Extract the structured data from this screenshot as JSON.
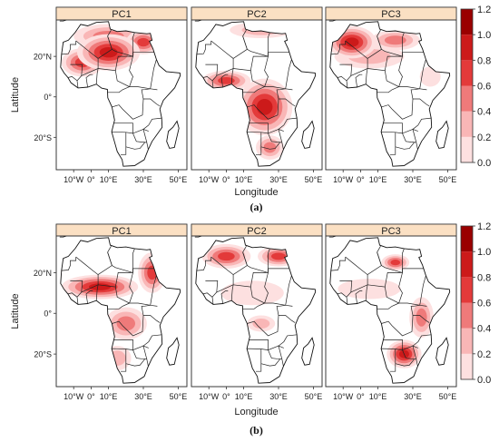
{
  "figure": {
    "panel_a": {
      "caption": "(a)",
      "titles": [
        "PC1",
        "PC2",
        "PC3"
      ],
      "xlabel": "Longitude",
      "ylabel": "Latitude",
      "xticks": [
        "10°W",
        "0°",
        "10°E",
        "30°E",
        "50°E"
      ],
      "yticks": [
        "20°N",
        "0°",
        "20°S"
      ],
      "colorbar": {
        "ticks": [
          "1.2",
          "1.0",
          "0.8",
          "0.6",
          "0.4",
          "0.2",
          "0.0"
        ]
      }
    },
    "panel_b": {
      "caption": "(b)",
      "titles": [
        "PC1",
        "PC2",
        "PC3"
      ],
      "xlabel": "Longitude",
      "ylabel": "Latitude",
      "xticks": [
        "10°W",
        "0°",
        "10°E",
        "30°E",
        "50°E"
      ],
      "yticks": [
        "20°N",
        "0°",
        "20°S"
      ],
      "colorbar": {
        "ticks": [
          "1.2",
          "1.0",
          "0.8",
          "0.6",
          "0.4",
          "0.2",
          "0.0"
        ]
      }
    }
  },
  "colors": {
    "strip": "#fbe0c3",
    "scale": [
      "#ffffff",
      "#fde0e0",
      "#f9b6b6",
      "#ef7a7a",
      "#e33a3a",
      "#cc1a1a",
      "#9a0000"
    ]
  },
  "map_levels": {
    "a": [
      [
        {
          "lon": 10,
          "lat": 22,
          "level": 5,
          "rx": 18,
          "ry": 9
        },
        {
          "lon": -5,
          "lat": 17,
          "level": 4,
          "rx": 12,
          "ry": 7
        },
        {
          "lon": 30,
          "lat": 27,
          "level": 4,
          "rx": 10,
          "ry": 6
        },
        {
          "lon": 10,
          "lat": 30,
          "level": 3,
          "rx": 20,
          "ry": 6
        }
      ],
      [
        {
          "lon": 22,
          "lat": -5,
          "level": 5,
          "rx": 16,
          "ry": 14
        },
        {
          "lon": 0,
          "lat": 8,
          "level": 4,
          "rx": 14,
          "ry": 5
        },
        {
          "lon": 25,
          "lat": -25,
          "level": 3,
          "rx": 8,
          "ry": 6
        },
        {
          "lon": 20,
          "lat": 33,
          "level": 2,
          "rx": 18,
          "ry": 4
        }
      ],
      [
        {
          "lon": -5,
          "lat": 27,
          "level": 5,
          "rx": 14,
          "ry": 8
        },
        {
          "lon": 20,
          "lat": 28,
          "level": 3,
          "rx": 14,
          "ry": 5
        },
        {
          "lon": 5,
          "lat": 20,
          "level": 2,
          "rx": 20,
          "ry": 6
        },
        {
          "lon": 40,
          "lat": 10,
          "level": 1,
          "rx": 6,
          "ry": 5
        }
      ]
    ],
    "b": [
      [
        {
          "lon": 5,
          "lat": 13,
          "level": 5,
          "rx": 22,
          "ry": 6
        },
        {
          "lon": 35,
          "lat": 20,
          "level": 4,
          "rx": 8,
          "ry": 10
        },
        {
          "lon": 20,
          "lat": -5,
          "level": 3,
          "rx": 12,
          "ry": 8
        },
        {
          "lon": 15,
          "lat": -22,
          "level": 2,
          "rx": 8,
          "ry": 6
        }
      ],
      [
        {
          "lon": 0,
          "lat": 28,
          "level": 4,
          "rx": 14,
          "ry": 6
        },
        {
          "lon": 30,
          "lat": 28,
          "level": 4,
          "rx": 12,
          "ry": 5
        },
        {
          "lon": 20,
          "lat": -5,
          "level": 2,
          "rx": 8,
          "ry": 4
        },
        {
          "lon": 15,
          "lat": 10,
          "level": 1,
          "rx": 18,
          "ry": 6
        }
      ],
      [
        {
          "lon": 25,
          "lat": -20,
          "level": 5,
          "rx": 10,
          "ry": 7
        },
        {
          "lon": 20,
          "lat": 25,
          "level": 4,
          "rx": 8,
          "ry": 4
        },
        {
          "lon": 35,
          "lat": -2,
          "level": 3,
          "rx": 7,
          "ry": 10
        },
        {
          "lon": 5,
          "lat": 12,
          "level": 1,
          "rx": 18,
          "ry": 5
        }
      ]
    ]
  }
}
